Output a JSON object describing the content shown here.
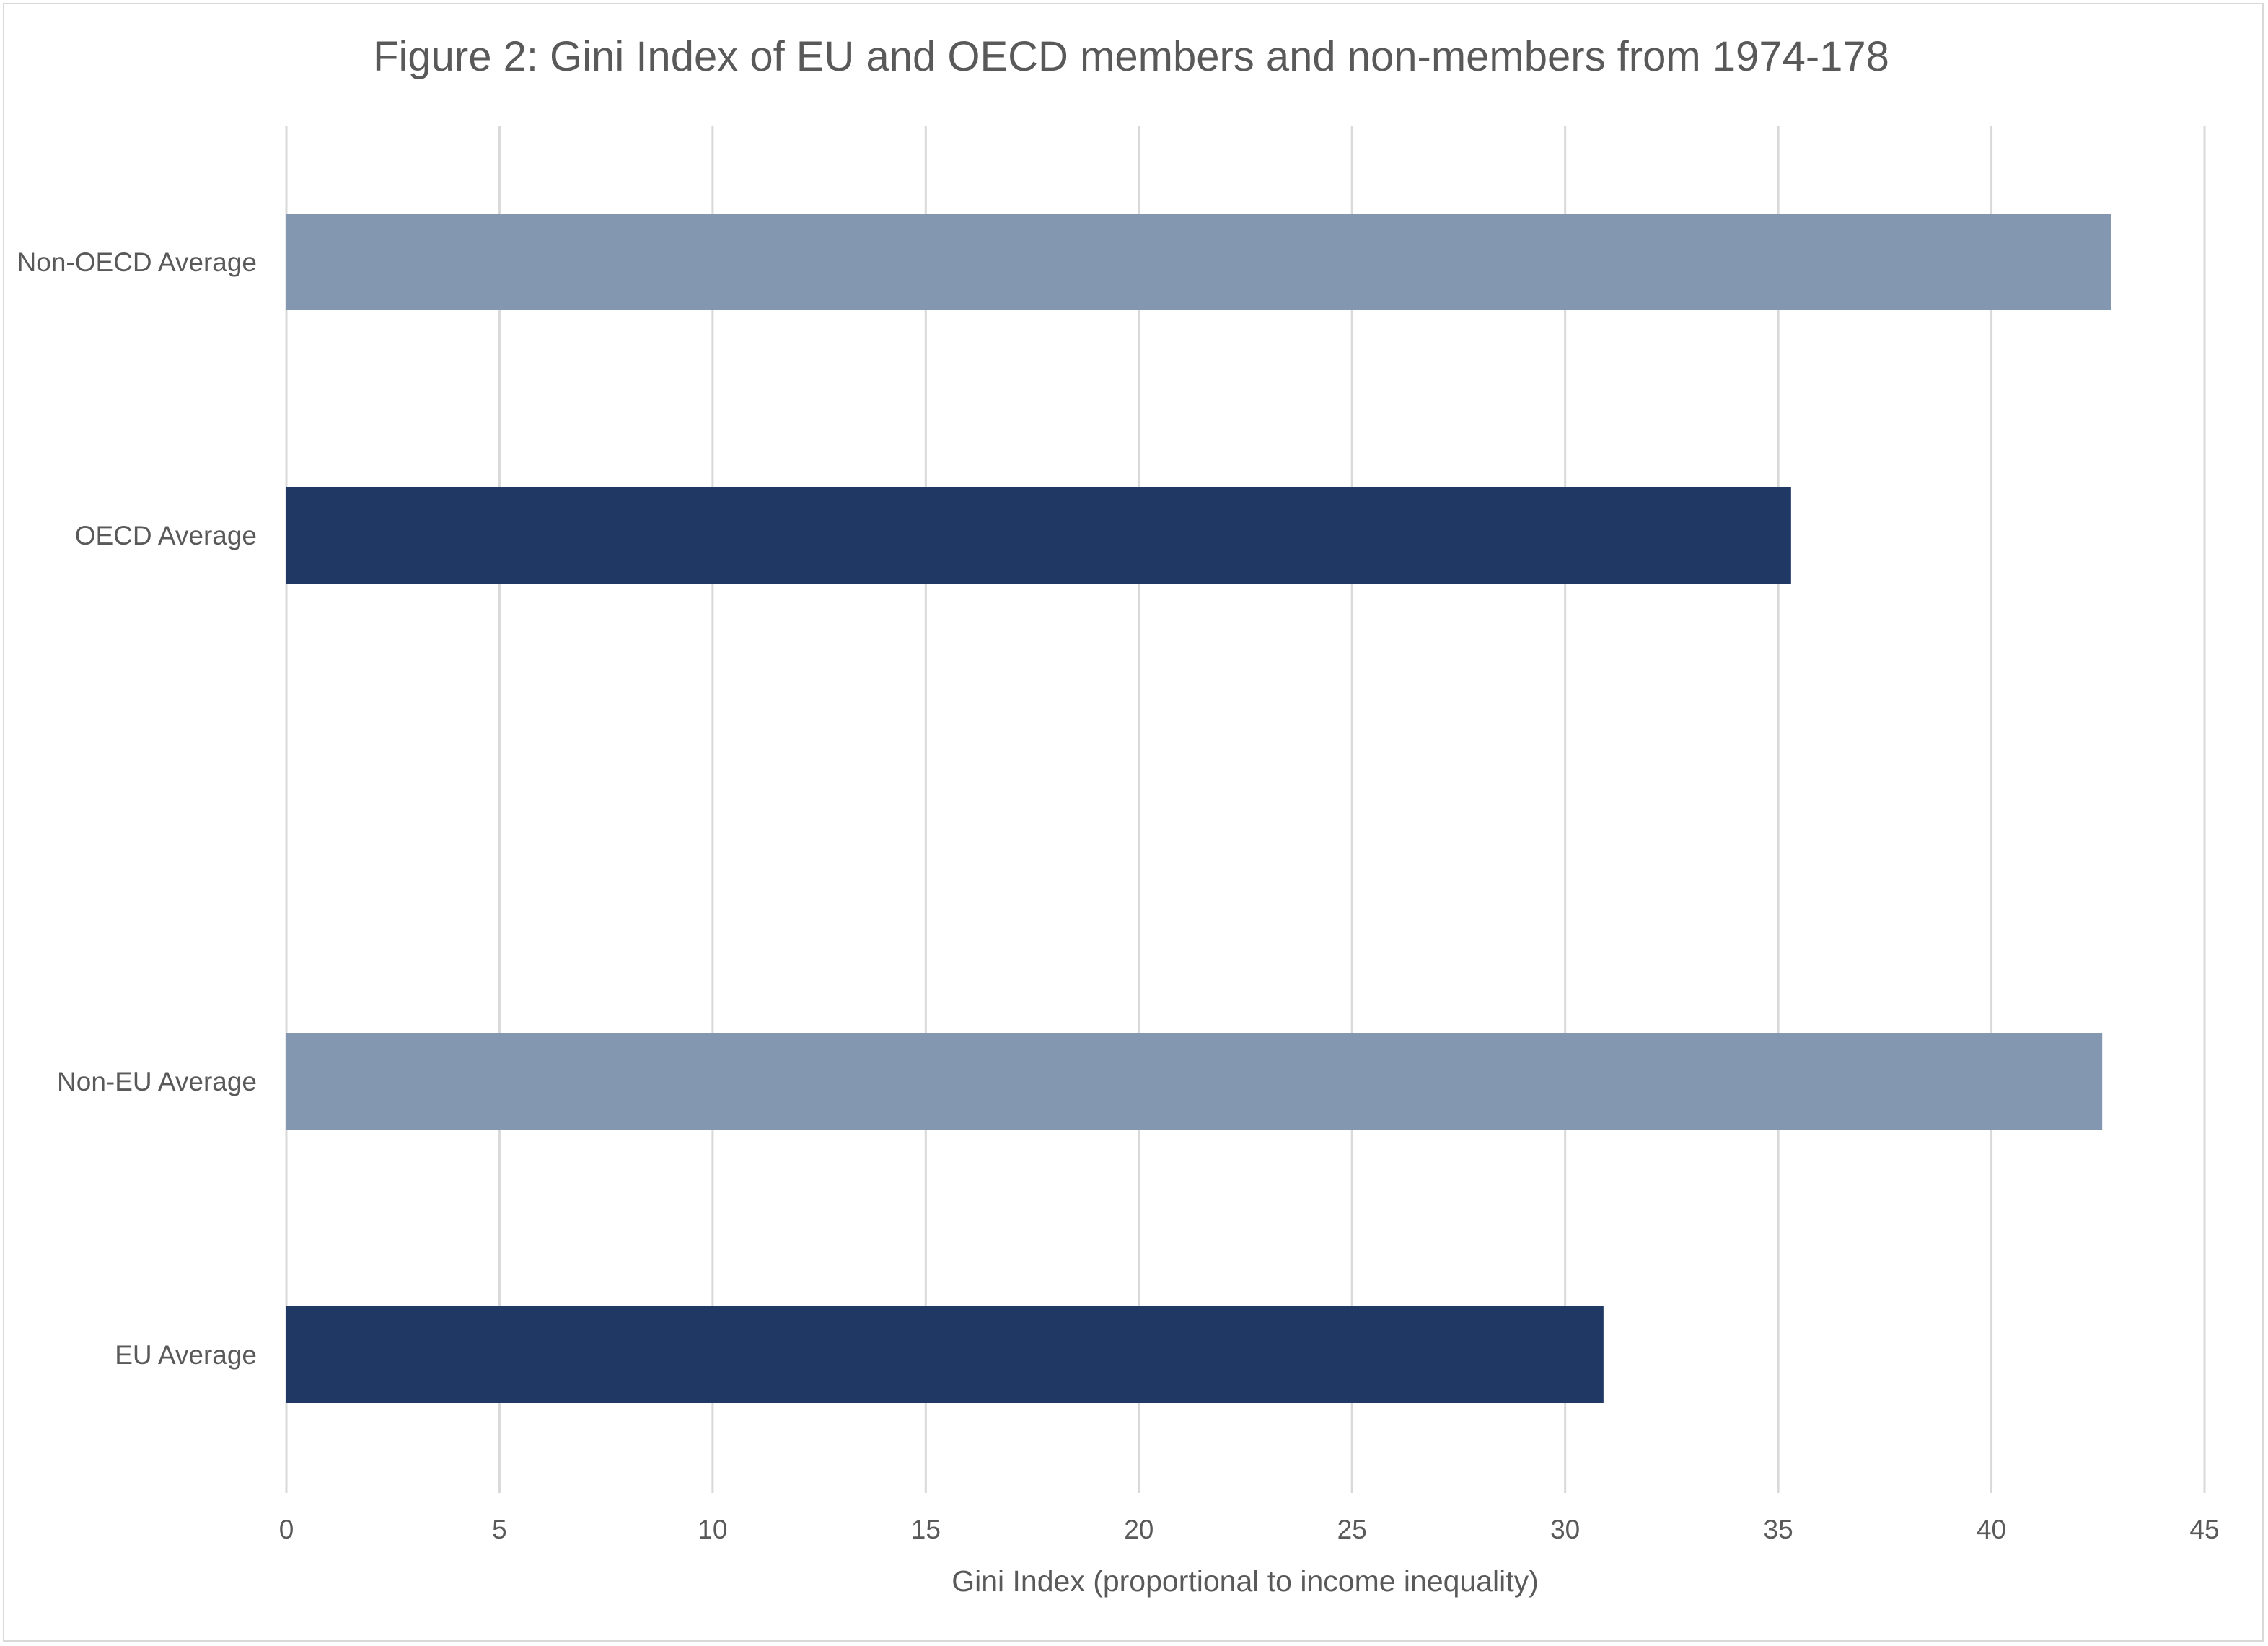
{
  "chart_data": {
    "type": "bar",
    "orientation": "horizontal",
    "title": "Figure 2: Gini Index of EU and OECD members and non-members from 1974-178",
    "xlabel": "Gini Index (proportional to income inequality)",
    "ylabel": "",
    "xlim": [
      0,
      45
    ],
    "x_ticks": [
      0,
      5,
      10,
      15,
      20,
      25,
      30,
      35,
      40,
      45
    ],
    "grid": "vertical",
    "legend": "none",
    "categories": [
      "Non-OECD Average",
      "OECD Average",
      "Non-EU Average",
      "EU Average"
    ],
    "values": [
      42.8,
      35.3,
      42.6,
      30.9
    ],
    "colors": {
      "non_member": "#8497b0",
      "member": "#203864",
      "grid": "#d9d9d9",
      "text": "#595959"
    },
    "bar_colors": [
      "#8497b0",
      "#203864",
      "#8497b0",
      "#203864"
    ]
  }
}
